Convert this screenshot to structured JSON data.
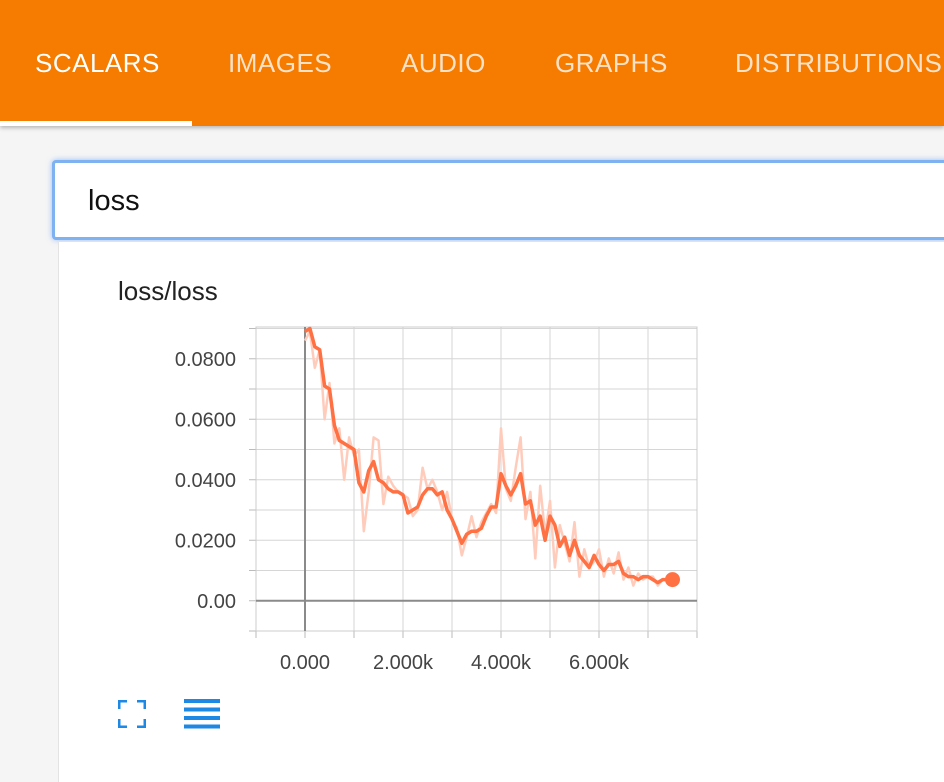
{
  "tabs": [
    {
      "label": "SCALARS",
      "active": true
    },
    {
      "label": "IMAGES",
      "active": false
    },
    {
      "label": "AUDIO",
      "active": false
    },
    {
      "label": "GRAPHS",
      "active": false
    },
    {
      "label": "DISTRIBUTIONS",
      "active": false
    }
  ],
  "search": {
    "value": "loss"
  },
  "colors": {
    "header": "#f57c00",
    "line": "#ff7043",
    "raw_line": "#ffccbc",
    "control_icons": "#1e88e5"
  },
  "controls": {
    "expand_icon": "fullscreen-icon",
    "data_icon": "list-icon"
  },
  "chart_data": {
    "type": "line",
    "title": "loss/loss",
    "xlabel": "",
    "ylabel": "",
    "xlim": [
      -1000,
      8000
    ],
    "ylim": [
      -0.01,
      0.0905
    ],
    "x_ticks": [
      0,
      2000,
      4000,
      6000
    ],
    "x_tick_labels": [
      "0.000",
      "2.000k",
      "4.000k",
      "6.000k"
    ],
    "y_ticks": [
      0,
      0.02,
      0.04,
      0.06,
      0.08
    ],
    "y_tick_labels": [
      "0.00",
      "0.0200",
      "0.0400",
      "0.0600",
      "0.0800"
    ],
    "grid": true,
    "series": [
      {
        "x": [
          0,
          100,
          200,
          300,
          400,
          500,
          600,
          700,
          800,
          900,
          1000,
          1100,
          1200,
          1300,
          1400,
          1500,
          1600,
          1700,
          1800,
          1900,
          2000,
          2100,
          2200,
          2300,
          2400,
          2500,
          2600,
          2700,
          2800,
          2900,
          3000,
          3100,
          3200,
          3300,
          3400,
          3500,
          3600,
          3700,
          3800,
          3900,
          4000,
          4100,
          4200,
          4300,
          4400,
          4500,
          4600,
          4700,
          4800,
          4900,
          5000,
          5100,
          5200,
          5300,
          5400,
          5500,
          5600,
          5700,
          5800,
          5900,
          6000,
          6100,
          6200,
          6300,
          6400,
          6500,
          6600,
          6700,
          6800,
          6900,
          7000,
          7100,
          7200,
          7300,
          7400,
          7500
        ],
        "raw": [
          0.086,
          0.089,
          0.077,
          0.083,
          0.06,
          0.072,
          0.052,
          0.057,
          0.04,
          0.054,
          0.048,
          0.05,
          0.023,
          0.036,
          0.054,
          0.053,
          0.032,
          0.041,
          0.038,
          0.036,
          0.035,
          0.034,
          0.028,
          0.03,
          0.044,
          0.037,
          0.04,
          0.036,
          0.03,
          0.036,
          0.027,
          0.024,
          0.015,
          0.021,
          0.028,
          0.021,
          0.026,
          0.029,
          0.032,
          0.029,
          0.057,
          0.037,
          0.033,
          0.044,
          0.054,
          0.027,
          0.036,
          0.014,
          0.038,
          0.022,
          0.033,
          0.011,
          0.025,
          0.019,
          0.013,
          0.026,
          0.008,
          0.017,
          0.011,
          0.013,
          0.017,
          0.008,
          0.014,
          0.009,
          0.016,
          0.007,
          0.011,
          0.005,
          0.009,
          0.007,
          0.008,
          0.008,
          0.005,
          0.007,
          0.007,
          0.007
        ],
        "smoothed": [
          0.089,
          0.09,
          0.084,
          0.083,
          0.071,
          0.07,
          0.058,
          0.053,
          0.052,
          0.051,
          0.05,
          0.039,
          0.036,
          0.043,
          0.046,
          0.04,
          0.039,
          0.037,
          0.036,
          0.036,
          0.035,
          0.029,
          0.03,
          0.031,
          0.035,
          0.037,
          0.037,
          0.035,
          0.036,
          0.03,
          0.027,
          0.023,
          0.019,
          0.022,
          0.023,
          0.023,
          0.024,
          0.028,
          0.031,
          0.031,
          0.042,
          0.038,
          0.035,
          0.038,
          0.042,
          0.032,
          0.033,
          0.025,
          0.028,
          0.02,
          0.028,
          0.025,
          0.018,
          0.021,
          0.015,
          0.02,
          0.015,
          0.013,
          0.011,
          0.015,
          0.012,
          0.01,
          0.012,
          0.012,
          0.013,
          0.009,
          0.008,
          0.008,
          0.007,
          0.008,
          0.008,
          0.007,
          0.006,
          0.007,
          0.007,
          0.007
        ]
      }
    ]
  }
}
